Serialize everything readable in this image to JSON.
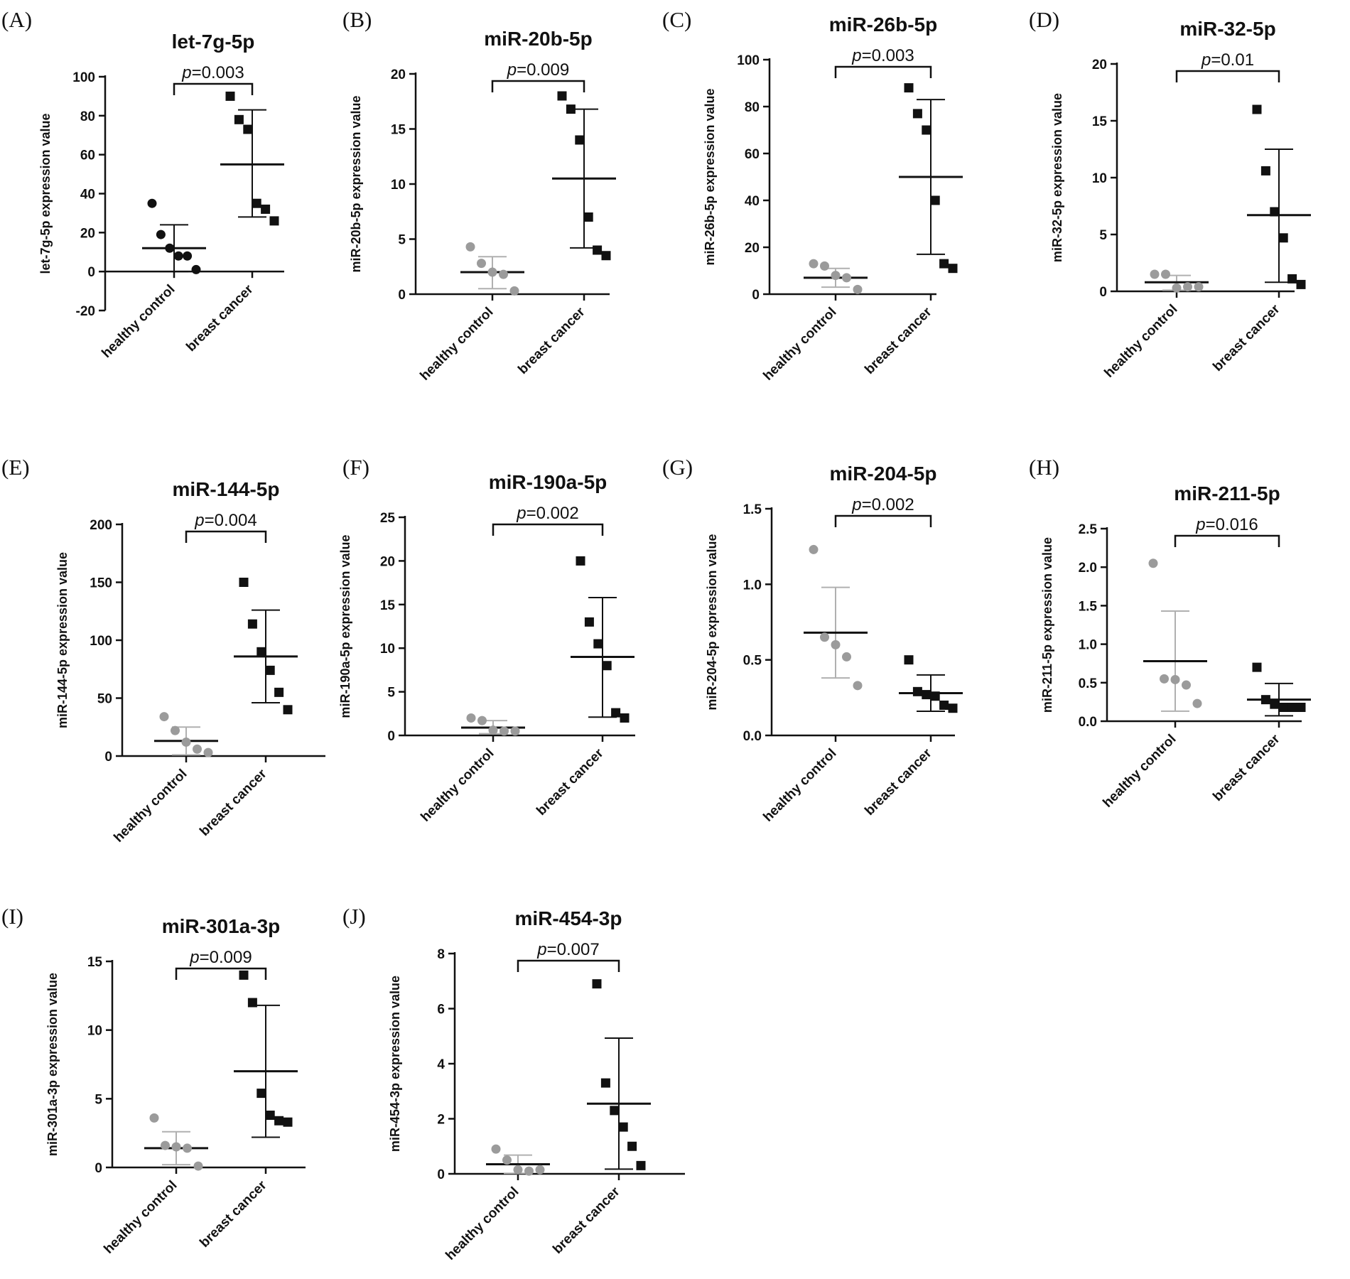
{
  "figure_title": "",
  "colors": {
    "control": "#9b9b9b",
    "cancer": "#111111",
    "control_bars": "#b0b0b0",
    "axis": "#111111"
  },
  "chart_data": [
    {
      "type": "scatter",
      "panel": "(A)",
      "title": "let-7g-5p",
      "ylabel": "let-7g-5p expression value",
      "ylim": [
        -20,
        100
      ],
      "yticks": [
        "-20",
        "0",
        "20",
        "40",
        "60",
        "80",
        "100"
      ],
      "ytick_values": [
        -20,
        0,
        20,
        40,
        60,
        80,
        100
      ],
      "categories": [
        "healthy control",
        "breast cancer"
      ],
      "p_prefix": "p",
      "p_value": "=0.003",
      "series": [
        {
          "name": "healthy control",
          "color": "#111111",
          "marker": "circle",
          "values": [
            35,
            19,
            12,
            8,
            8,
            1
          ],
          "mean": 12,
          "sd_upper": 24,
          "sd_lower": 0
        },
        {
          "name": "breast cancer",
          "color": "#111111",
          "marker": "square",
          "values": [
            90,
            78,
            73,
            35,
            32,
            26
          ],
          "mean": 55,
          "sd_upper": 83,
          "sd_lower": 28
        }
      ]
    },
    {
      "type": "scatter",
      "panel": "(B)",
      "title": "miR-20b-5p",
      "ylabel": "miR-20b-5p expression value",
      "ylim": [
        0,
        20
      ],
      "yticks": [
        "0",
        "5",
        "10",
        "15",
        "20"
      ],
      "ytick_values": [
        0,
        5,
        10,
        15,
        20
      ],
      "categories": [
        "healthy control",
        "breast cancer"
      ],
      "p_prefix": "p",
      "p_value": "=0.009",
      "series": [
        {
          "name": "healthy control",
          "color": "#9b9b9b",
          "marker": "circle",
          "values": [
            4.3,
            2.8,
            2.0,
            1.8,
            0.3
          ],
          "mean": 2.0,
          "sd_upper": 3.4,
          "sd_lower": 0.5
        },
        {
          "name": "breast cancer",
          "color": "#111111",
          "marker": "square",
          "values": [
            18,
            16.8,
            14,
            7,
            4,
            3.5
          ],
          "mean": 10.5,
          "sd_upper": 16.8,
          "sd_lower": 4.2
        }
      ]
    },
    {
      "type": "scatter",
      "panel": "(C)",
      "title": "miR-26b-5p",
      "ylabel": "miR-26b-5p expression value",
      "ylim": [
        0,
        100
      ],
      "yticks": [
        "0",
        "20",
        "40",
        "60",
        "80",
        "100"
      ],
      "ytick_values": [
        0,
        20,
        40,
        60,
        80,
        100
      ],
      "categories": [
        "healthy control",
        "breast cancer"
      ],
      "p_prefix": "p",
      "p_value": "=0.003",
      "series": [
        {
          "name": "healthy control",
          "color": "#9b9b9b",
          "marker": "circle",
          "values": [
            13,
            12,
            8,
            7,
            2
          ],
          "mean": 7,
          "sd_upper": 11,
          "sd_lower": 3
        },
        {
          "name": "breast cancer",
          "color": "#111111",
          "marker": "square",
          "values": [
            88,
            77,
            70,
            40,
            13,
            11
          ],
          "mean": 50,
          "sd_upper": 83,
          "sd_lower": 17
        }
      ]
    },
    {
      "type": "scatter",
      "panel": "(D)",
      "title": "miR-32-5p",
      "ylabel": "miR-32-5p expression value",
      "ylim": [
        0,
        20
      ],
      "yticks": [
        "0",
        "5",
        "10",
        "15",
        "20"
      ],
      "ytick_values": [
        0,
        5,
        10,
        15,
        20
      ],
      "categories": [
        "healthy control",
        "breast cancer"
      ],
      "p_prefix": "p",
      "p_value": "=0.01",
      "series": [
        {
          "name": "healthy control",
          "color": "#9b9b9b",
          "marker": "circle",
          "values": [
            1.5,
            1.5,
            0.3,
            0.4,
            0.4
          ],
          "mean": 0.8,
          "sd_upper": 1.4,
          "sd_lower": 0.1
        },
        {
          "name": "breast cancer",
          "color": "#111111",
          "marker": "square",
          "values": [
            16,
            10.6,
            7,
            4.7,
            1.1,
            0.6
          ],
          "mean": 6.7,
          "sd_upper": 12.5,
          "sd_lower": 0.8
        }
      ]
    },
    {
      "type": "scatter",
      "panel": "(E)",
      "title": "miR-144-5p",
      "ylabel": "miR-144-5p expression value",
      "ylim": [
        0,
        200
      ],
      "yticks": [
        "0",
        "50",
        "100",
        "150",
        "200"
      ],
      "ytick_values": [
        0,
        50,
        100,
        150,
        200
      ],
      "categories": [
        "healthy control",
        "breast cancer"
      ],
      "p_prefix": "p",
      "p_value": "=0.004",
      "series": [
        {
          "name": "healthy control",
          "color": "#9b9b9b",
          "marker": "circle",
          "values": [
            34,
            22,
            12,
            6,
            3
          ],
          "mean": 13,
          "sd_upper": 25,
          "sd_lower": 1
        },
        {
          "name": "breast cancer",
          "color": "#111111",
          "marker": "square",
          "values": [
            150,
            114,
            90,
            74,
            55,
            40
          ],
          "mean": 86,
          "sd_upper": 126,
          "sd_lower": 46
        }
      ]
    },
    {
      "type": "scatter",
      "panel": "(F)",
      "title": "miR-190a-5p",
      "ylabel": "miR-190a-5p expression value",
      "ylim": [
        0,
        25
      ],
      "yticks": [
        "0",
        "5",
        "10",
        "15",
        "20",
        "25"
      ],
      "ytick_values": [
        0,
        5,
        10,
        15,
        20,
        25
      ],
      "categories": [
        "healthy control",
        "breast cancer"
      ],
      "p_prefix": "p",
      "p_value": "=0.002",
      "series": [
        {
          "name": "healthy control",
          "color": "#9b9b9b",
          "marker": "circle",
          "values": [
            2.0,
            1.7,
            0.6,
            0.5,
            0.5
          ],
          "mean": 0.9,
          "sd_upper": 1.7,
          "sd_lower": 0.2
        },
        {
          "name": "breast cancer",
          "color": "#111111",
          "marker": "square",
          "values": [
            20,
            13,
            10.5,
            8,
            2.6,
            2.0
          ],
          "mean": 9.0,
          "sd_upper": 15.8,
          "sd_lower": 2.1
        }
      ]
    },
    {
      "type": "scatter",
      "panel": "(G)",
      "title": "miR-204-5p",
      "ylabel": "miR-204-5p expression value",
      "ylim": [
        0,
        1.5
      ],
      "yticks": [
        "0.0",
        "0.5",
        "1.0",
        "1.5"
      ],
      "ytick_values": [
        0,
        0.5,
        1.0,
        1.5
      ],
      "categories": [
        "healthy control",
        "breast cancer"
      ],
      "p_prefix": "p",
      "p_value": "=0.002",
      "series": [
        {
          "name": "healthy control",
          "color": "#9b9b9b",
          "marker": "circle",
          "values": [
            1.23,
            0.65,
            0.6,
            0.52,
            0.33
          ],
          "mean": 0.68,
          "sd_upper": 0.98,
          "sd_lower": 0.38
        },
        {
          "name": "breast cancer",
          "color": "#111111",
          "marker": "square",
          "values": [
            0.5,
            0.29,
            0.27,
            0.26,
            0.2,
            0.18
          ],
          "mean": 0.28,
          "sd_upper": 0.4,
          "sd_lower": 0.16
        }
      ]
    },
    {
      "type": "scatter",
      "panel": "(H)",
      "title": "miR-211-5p",
      "ylabel": "miR-211-5p expression value",
      "ylim": [
        0,
        2.5
      ],
      "yticks": [
        "0.0",
        "0.5",
        "1.0",
        "1.5",
        "2.0",
        "2.5"
      ],
      "ytick_values": [
        0,
        0.5,
        1.0,
        1.5,
        2.0,
        2.5
      ],
      "categories": [
        "healthy control",
        "breast cancer"
      ],
      "p_prefix": "p",
      "p_value": "=0.016",
      "series": [
        {
          "name": "healthy control",
          "color": "#9b9b9b",
          "marker": "circle",
          "values": [
            2.05,
            0.55,
            0.54,
            0.47,
            0.23
          ],
          "mean": 0.78,
          "sd_upper": 1.43,
          "sd_lower": 0.13
        },
        {
          "name": "breast cancer",
          "color": "#111111",
          "marker": "square",
          "values": [
            0.7,
            0.28,
            0.22,
            0.18,
            0.18,
            0.18
          ],
          "mean": 0.28,
          "sd_upper": 0.49,
          "sd_lower": 0.07
        }
      ]
    },
    {
      "type": "scatter",
      "panel": "(I)",
      "title": "miR-301a-3p",
      "ylabel": "miR-301a-3p expression value",
      "ylim": [
        0,
        15
      ],
      "yticks": [
        "0",
        "5",
        "10",
        "15"
      ],
      "ytick_values": [
        0,
        5,
        10,
        15
      ],
      "categories": [
        "healthy control",
        "breast cancer"
      ],
      "p_prefix": "p",
      "p_value": "=0.009",
      "series": [
        {
          "name": "healthy control",
          "color": "#9b9b9b",
          "marker": "circle",
          "values": [
            3.6,
            1.6,
            1.5,
            1.4,
            0.1
          ],
          "mean": 1.4,
          "sd_upper": 2.6,
          "sd_lower": 0.2
        },
        {
          "name": "breast cancer",
          "color": "#111111",
          "marker": "square",
          "values": [
            14,
            12,
            5.4,
            3.8,
            3.4,
            3.3
          ],
          "mean": 7.0,
          "sd_upper": 11.8,
          "sd_lower": 2.2
        }
      ]
    },
    {
      "type": "scatter",
      "panel": "(J)",
      "title": "miR-454-3p",
      "ylabel": "miR-454-3p expression value",
      "ylim": [
        0,
        8
      ],
      "yticks": [
        "0",
        "2",
        "4",
        "6",
        "8"
      ],
      "ytick_values": [
        0,
        2,
        4,
        6,
        8
      ],
      "categories": [
        "healthy control",
        "breast cancer"
      ],
      "p_prefix": "p",
      "p_value": "=0.007",
      "series": [
        {
          "name": "healthy control",
          "color": "#9b9b9b",
          "marker": "circle",
          "values": [
            0.9,
            0.5,
            0.15,
            0.1,
            0.15
          ],
          "mean": 0.35,
          "sd_upper": 0.68,
          "sd_lower": 0.02
        },
        {
          "name": "breast cancer",
          "color": "#111111",
          "marker": "square",
          "values": [
            6.9,
            3.3,
            2.3,
            1.7,
            1.0,
            0.3
          ],
          "mean": 2.55,
          "sd_upper": 4.93,
          "sd_lower": 0.17
        }
      ]
    }
  ]
}
